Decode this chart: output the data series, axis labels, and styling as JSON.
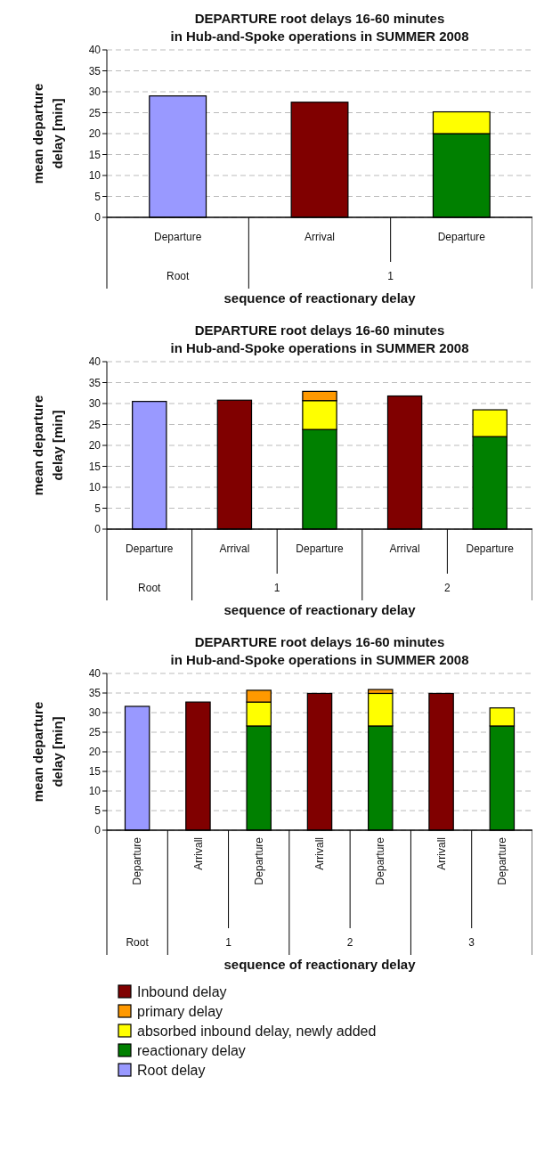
{
  "chart_data": [
    {
      "type": "bar",
      "title": "DEPARTURE root delays 16-60 minutes\nin Hub-and-Spoke operations in SUMMER 2008",
      "xlabel": "sequence of reactionary delay",
      "ylabel": "mean departure\ndelay [min]",
      "categories": [
        "Departure",
        "Arrival",
        "Departure"
      ],
      "annotations": [
        "Root",
        "1"
      ],
      "stacked": true,
      "ylim": [
        0,
        40
      ],
      "yticks": [
        0,
        5,
        10,
        15,
        20,
        25,
        30,
        35,
        40
      ],
      "grid": "y",
      "legend": false,
      "series": [
        {
          "color": "#9999ff",
          "values": [
            29,
            null,
            null
          ]
        },
        {
          "color": "#008000",
          "values": [
            null,
            null,
            20
          ]
        },
        {
          "color": "#ffff00",
          "values": [
            null,
            null,
            5.2
          ]
        },
        {
          "color": "#800000",
          "values": [
            null,
            27.5,
            null
          ]
        }
      ]
    },
    {
      "type": "bar",
      "title": "DEPARTURE root delays 16-60 minutes\nin Hub-and-Spoke operations in SUMMER 2008",
      "xlabel": "sequence of reactionary delay",
      "ylabel": "mean departure\ndelay [min]",
      "categories": [
        "Departure",
        "Arrival",
        "Departure",
        "Arrival",
        "Departure"
      ],
      "annotations": [
        "Root",
        "1",
        "2"
      ],
      "stacked": true,
      "ylim": [
        0,
        40
      ],
      "yticks": [
        0,
        5,
        10,
        15,
        20,
        25,
        30,
        35,
        40
      ],
      "grid": "y",
      "legend": false,
      "series": [
        {
          "color": "#9999ff",
          "values": [
            30.5,
            null,
            null,
            null,
            null
          ]
        },
        {
          "color": "#008000",
          "values": [
            null,
            null,
            23.8,
            null,
            22.1
          ]
        },
        {
          "color": "#ffff00",
          "values": [
            null,
            null,
            6.9,
            null,
            6.4
          ]
        },
        {
          "color": "#ff9900",
          "values": [
            null,
            null,
            2.2,
            null,
            null
          ]
        },
        {
          "color": "#800000",
          "values": [
            null,
            30.8,
            null,
            31.8,
            null
          ]
        }
      ]
    },
    {
      "type": "bar",
      "title": "DEPARTURE root delays 16-60 minutes\nin Hub-and-Spoke operations in SUMMER 2008",
      "xlabel": "sequence of reactionary delay",
      "ylabel": "mean departure\ndelay [min]",
      "categories": [
        "Departure",
        "Arrivall",
        "Departure",
        "Arrivall",
        "Departure",
        "Arrivall",
        "Departure"
      ],
      "annotations": [
        "Root",
        "1",
        "2",
        "3"
      ],
      "stacked": true,
      "ylim": [
        0,
        40
      ],
      "yticks": [
        0,
        5,
        10,
        15,
        20,
        25,
        30,
        35,
        40
      ],
      "grid": "y",
      "legend": "bottom",
      "series": [
        {
          "name": "Root delay",
          "color": "#9999ff",
          "values": [
            31.6,
            null,
            null,
            null,
            null,
            null,
            null
          ]
        },
        {
          "name": "reactionary delay",
          "color": "#008000",
          "values": [
            null,
            null,
            26.6,
            null,
            26.6,
            null,
            26.6
          ]
        },
        {
          "name": "absorbed inbound delay, newly added",
          "color": "#ffff00",
          "values": [
            null,
            null,
            6.1,
            null,
            8.3,
            null,
            4.6
          ]
        },
        {
          "name": "primary delay",
          "color": "#ff9900",
          "values": [
            null,
            null,
            3.0,
            null,
            1.0,
            null,
            null
          ]
        },
        {
          "name": "Inbound delay",
          "color": "#800000",
          "values": [
            null,
            32.7,
            null,
            34.9,
            null,
            34.9,
            null
          ]
        }
      ]
    }
  ]
}
